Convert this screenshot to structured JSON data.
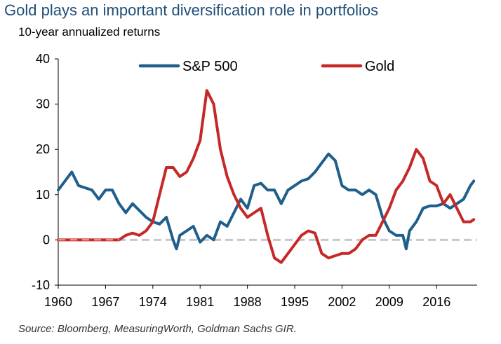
{
  "header": {
    "title": "Gold plays an important diversification role in portfolios",
    "subtitle": "10-year annualized returns"
  },
  "footer": {
    "source": "Source: Bloomberg, MeasuringWorth, Goldman Sachs GIR."
  },
  "chart_data": {
    "type": "line",
    "title": "Gold plays an important diversification role in portfolios",
    "subtitle": "10-year annualized returns",
    "xlabel": "",
    "ylabel": "",
    "xlim": [
      1960,
      2022
    ],
    "ylim": [
      -10,
      40
    ],
    "x_ticks": [
      1960,
      1967,
      1974,
      1981,
      1988,
      1995,
      2002,
      2009,
      2016
    ],
    "y_ticks": [
      -10,
      0,
      10,
      20,
      30,
      40
    ],
    "reference_line": {
      "y": 0,
      "style": "dashed"
    },
    "legend": {
      "position": "top"
    },
    "grid": false,
    "series": [
      {
        "name": "S&P 500",
        "color": "#1f5f8b",
        "points": [
          [
            1960,
            11
          ],
          [
            1961,
            13
          ],
          [
            1962,
            15
          ],
          [
            1963,
            12
          ],
          [
            1964,
            11.5
          ],
          [
            1965,
            11
          ],
          [
            1966,
            9
          ],
          [
            1967,
            11
          ],
          [
            1968,
            11
          ],
          [
            1969,
            8
          ],
          [
            1970,
            6
          ],
          [
            1971,
            8
          ],
          [
            1972,
            6.5
          ],
          [
            1973,
            5
          ],
          [
            1974,
            4
          ],
          [
            1975,
            3.5
          ],
          [
            1976,
            5
          ],
          [
            1977,
            0
          ],
          [
            1977.5,
            -2
          ],
          [
            1978,
            1
          ],
          [
            1979,
            2
          ],
          [
            1980,
            3
          ],
          [
            1981,
            -0.5
          ],
          [
            1982,
            1
          ],
          [
            1983,
            0
          ],
          [
            1984,
            4
          ],
          [
            1985,
            3
          ],
          [
            1986,
            6
          ],
          [
            1987,
            9
          ],
          [
            1988,
            7
          ],
          [
            1989,
            12
          ],
          [
            1990,
            12.5
          ],
          [
            1991,
            11
          ],
          [
            1992,
            11
          ],
          [
            1993,
            8
          ],
          [
            1994,
            11
          ],
          [
            1995,
            12
          ],
          [
            1996,
            13
          ],
          [
            1997,
            13.5
          ],
          [
            1998,
            15
          ],
          [
            1999,
            17
          ],
          [
            2000,
            19
          ],
          [
            2001,
            17.5
          ],
          [
            2002,
            12
          ],
          [
            2003,
            11
          ],
          [
            2004,
            11
          ],
          [
            2005,
            10
          ],
          [
            2006,
            11
          ],
          [
            2007,
            10
          ],
          [
            2008,
            5
          ],
          [
            2009,
            2
          ],
          [
            2010,
            1
          ],
          [
            2011,
            1
          ],
          [
            2011.5,
            -2
          ],
          [
            2012,
            2
          ],
          [
            2013,
            4
          ],
          [
            2014,
            7
          ],
          [
            2015,
            7.5
          ],
          [
            2016,
            7.5
          ],
          [
            2017,
            8
          ],
          [
            2018,
            7
          ],
          [
            2019,
            8
          ],
          [
            2020,
            9
          ],
          [
            2021,
            12
          ],
          [
            2021.5,
            13
          ]
        ]
      },
      {
        "name": "Gold",
        "color": "#c62828",
        "points": [
          [
            1960,
            0
          ],
          [
            1969,
            0
          ],
          [
            1970,
            1
          ],
          [
            1971,
            1.5
          ],
          [
            1972,
            1
          ],
          [
            1973,
            2
          ],
          [
            1974,
            4
          ],
          [
            1975,
            10
          ],
          [
            1976,
            16
          ],
          [
            1977,
            16
          ],
          [
            1978,
            14
          ],
          [
            1979,
            15
          ],
          [
            1980,
            18
          ],
          [
            1981,
            22
          ],
          [
            1982,
            33
          ],
          [
            1983,
            30
          ],
          [
            1984,
            20
          ],
          [
            1985,
            14
          ],
          [
            1986,
            10
          ],
          [
            1987,
            7
          ],
          [
            1988,
            5
          ],
          [
            1989,
            6
          ],
          [
            1990,
            7
          ],
          [
            1991,
            1
          ],
          [
            1992,
            -4
          ],
          [
            1993,
            -5
          ],
          [
            1994,
            -3
          ],
          [
            1995,
            -1
          ],
          [
            1996,
            1
          ],
          [
            1997,
            2
          ],
          [
            1998,
            1.5
          ],
          [
            1999,
            -3
          ],
          [
            2000,
            -4
          ],
          [
            2001,
            -3.5
          ],
          [
            2002,
            -3
          ],
          [
            2003,
            -3
          ],
          [
            2004,
            -2
          ],
          [
            2005,
            0
          ],
          [
            2006,
            1
          ],
          [
            2007,
            1
          ],
          [
            2008,
            4
          ],
          [
            2009,
            7
          ],
          [
            2010,
            11
          ],
          [
            2011,
            13
          ],
          [
            2012,
            16
          ],
          [
            2013,
            20
          ],
          [
            2014,
            18
          ],
          [
            2015,
            13
          ],
          [
            2016,
            12
          ],
          [
            2017,
            8
          ],
          [
            2018,
            10
          ],
          [
            2019,
            7
          ],
          [
            2020,
            4
          ],
          [
            2021,
            4
          ],
          [
            2021.5,
            4.5
          ]
        ]
      }
    ]
  }
}
